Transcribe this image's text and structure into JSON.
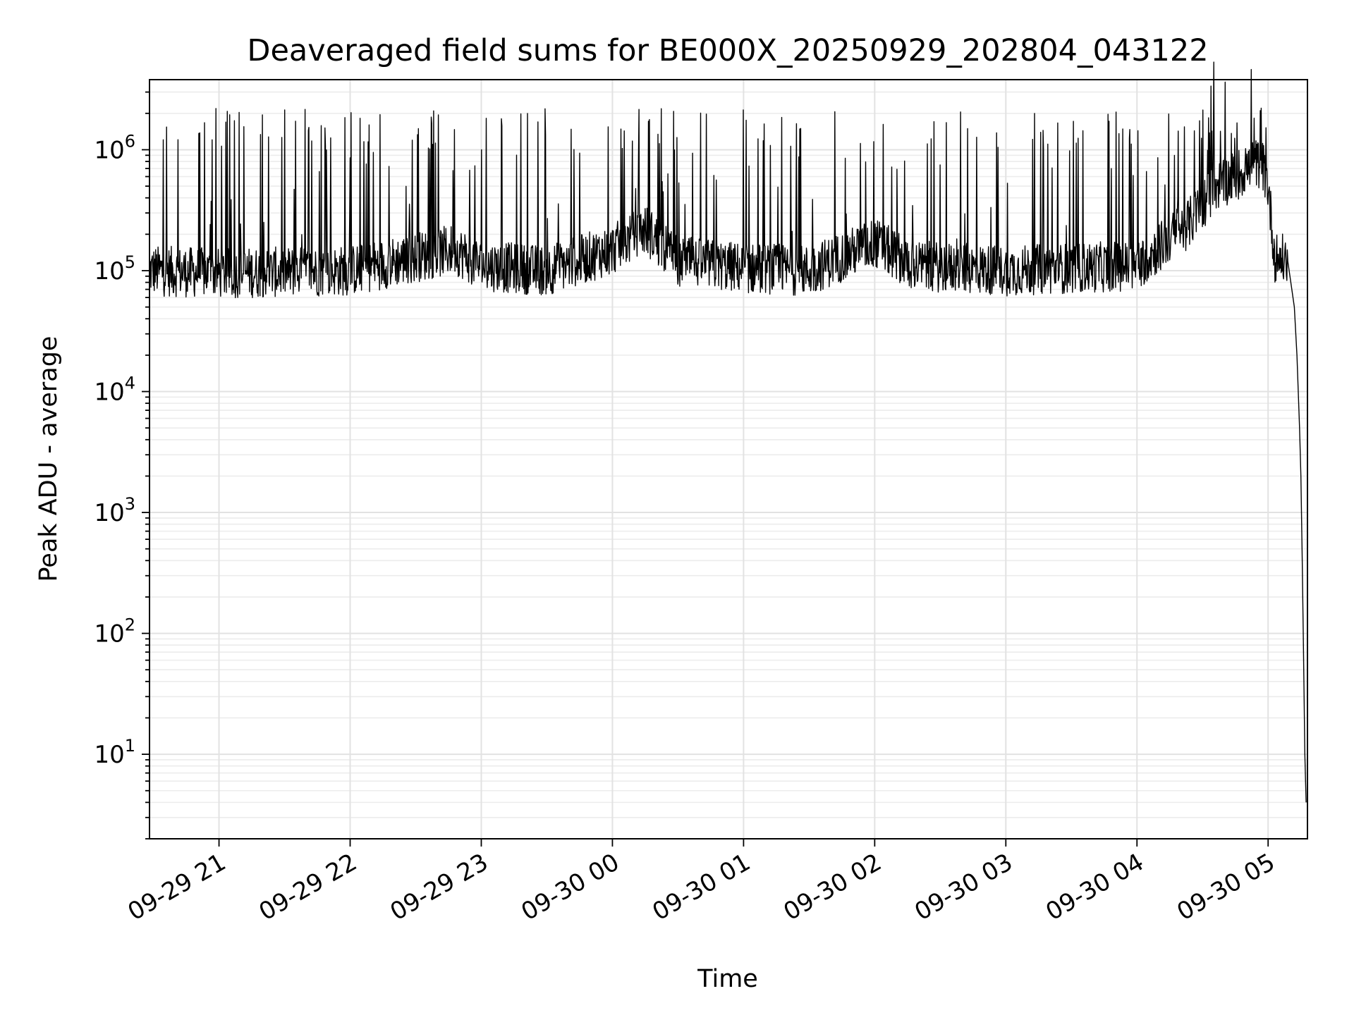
{
  "chart_data": {
    "type": "line",
    "title": "Deaveraged field sums for BE000X_20250929_202804_043122",
    "xlabel": "Time",
    "ylabel": "Peak ADU - average",
    "yscale": "log",
    "ylim": [
      2,
      3800000
    ],
    "y_ticks": [
      {
        "value": 10,
        "base": "10",
        "exp": "1"
      },
      {
        "value": 100,
        "base": "10",
        "exp": "2"
      },
      {
        "value": 1000,
        "base": "10",
        "exp": "3"
      },
      {
        "value": 10000,
        "base": "10",
        "exp": "4"
      },
      {
        "value": 100000,
        "base": "10",
        "exp": "5"
      },
      {
        "value": 1000000,
        "base": "10",
        "exp": "6"
      }
    ],
    "x_unit": "hours since 09-29 20:00",
    "xlim": [
      0.47,
      9.3
    ],
    "x_ticks": [
      {
        "value": 1,
        "label": "09-29 21"
      },
      {
        "value": 2,
        "label": "09-29 22"
      },
      {
        "value": 3,
        "label": "09-29 23"
      },
      {
        "value": 4,
        "label": "09-30 00"
      },
      {
        "value": 5,
        "label": "09-30 01"
      },
      {
        "value": 6,
        "label": "09-30 02"
      },
      {
        "value": 7,
        "label": "09-30 03"
      },
      {
        "value": 8,
        "label": "09-30 04"
      },
      {
        "value": 9,
        "label": "09-30 05"
      }
    ],
    "series": [
      {
        "name": "deaveraged field sum",
        "color": "#000000",
        "baseline_profile": [
          {
            "x": 0.47,
            "y": 100000
          },
          {
            "x": 1.0,
            "y": 95000
          },
          {
            "x": 2.0,
            "y": 100000
          },
          {
            "x": 2.8,
            "y": 150000
          },
          {
            "x": 3.0,
            "y": 110000
          },
          {
            "x": 3.5,
            "y": 100000
          },
          {
            "x": 4.0,
            "y": 150000
          },
          {
            "x": 4.25,
            "y": 220000
          },
          {
            "x": 4.5,
            "y": 120000
          },
          {
            "x": 5.0,
            "y": 105000
          },
          {
            "x": 5.5,
            "y": 100000
          },
          {
            "x": 6.0,
            "y": 170000
          },
          {
            "x": 6.3,
            "y": 110000
          },
          {
            "x": 7.0,
            "y": 100000
          },
          {
            "x": 8.0,
            "y": 110000
          },
          {
            "x": 8.4,
            "y": 250000
          },
          {
            "x": 8.6,
            "y": 500000
          },
          {
            "x": 8.95,
            "y": 800000
          },
          {
            "x": 9.0,
            "y": 500000
          },
          {
            "x": 9.05,
            "y": 130000
          },
          {
            "x": 9.15,
            "y": 120000
          }
        ],
        "spike_peak": 1600000,
        "dropoff": [
          {
            "x": 9.15,
            "y": 120000
          },
          {
            "x": 9.2,
            "y": 50000
          },
          {
            "x": 9.22,
            "y": 20000
          },
          {
            "x": 9.24,
            "y": 5000
          },
          {
            "x": 9.25,
            "y": 2000
          },
          {
            "x": 9.26,
            "y": 400
          },
          {
            "x": 9.27,
            "y": 70
          },
          {
            "x": 9.28,
            "y": 10
          },
          {
            "x": 9.29,
            "y": 4
          }
        ]
      }
    ],
    "grid": true
  }
}
